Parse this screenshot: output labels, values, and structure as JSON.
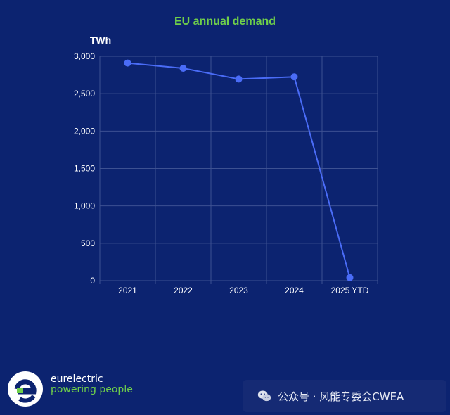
{
  "chart_data": {
    "type": "line",
    "title": "EU annual demand",
    "ylabel": "TWh",
    "xlabel": "",
    "categories": [
      "2021",
      "2022",
      "2023",
      "2024",
      "2025 YTD"
    ],
    "series": [
      {
        "values": [
          2910,
          2840,
          2695,
          2725,
          40
        ]
      }
    ],
    "ylim": [
      0,
      3000
    ],
    "yticks": [
      "3,000",
      "2,500",
      "2,000",
      "1,500",
      "1,000",
      "500",
      "0"
    ],
    "grid": true,
    "legend": "none"
  },
  "colors": {
    "background": "#0c2370",
    "title": "#6fcf4a",
    "line": "#4a6cf7",
    "grid": "#3d5192"
  },
  "logo": {
    "name": "eurelectric",
    "tagline": "powering people"
  },
  "watermark": {
    "icon": "wechat-icon",
    "text": "公众号 · 风能专委会CWEA"
  }
}
